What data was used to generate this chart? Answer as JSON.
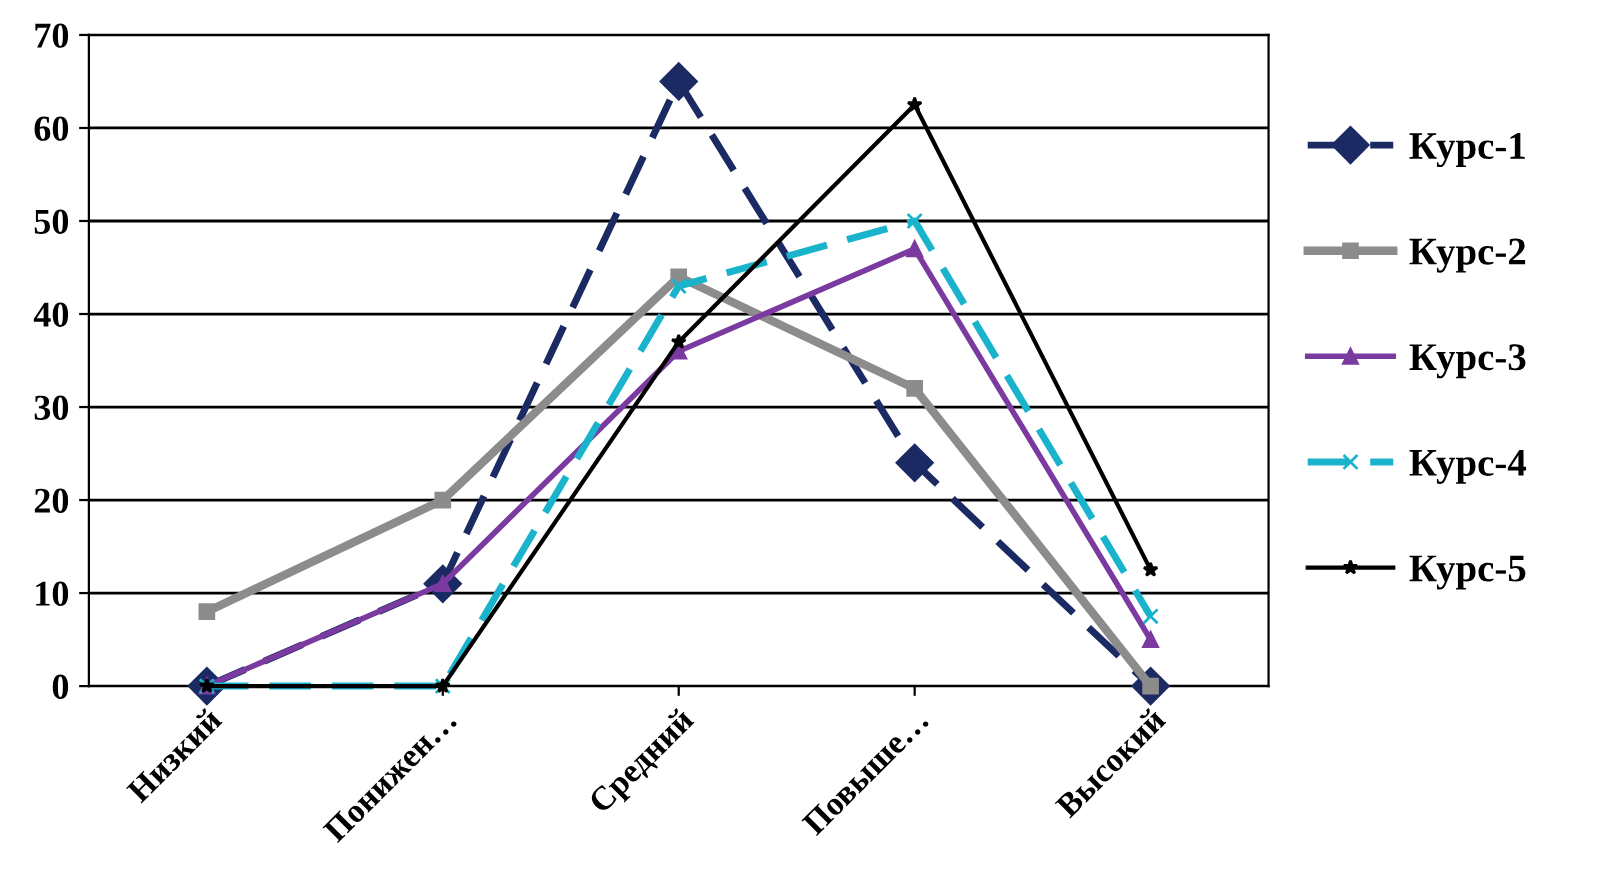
{
  "chart_data": {
    "type": "line",
    "categories": [
      "Низкий",
      "Понижен…",
      "Средний",
      "Повыше…",
      "Высокий"
    ],
    "series": [
      {
        "name": "Курс-1",
        "color": "#1b2a63",
        "values": [
          0,
          11,
          65,
          24,
          0
        ],
        "marker": "diamond",
        "line_style": "dashed"
      },
      {
        "name": "Курс-2",
        "color": "#8c8c8c",
        "values": [
          8,
          20,
          44,
          32,
          0
        ],
        "marker": "square",
        "line_style": "solid"
      },
      {
        "name": "Курс-3",
        "color": "#7a3aa0",
        "values": [
          0,
          11,
          36,
          47,
          5
        ],
        "marker": "triangle",
        "line_style": "solid"
      },
      {
        "name": "Курс-4",
        "color": "#1ab3cc",
        "values": [
          0,
          0,
          43,
          50,
          7.5
        ],
        "marker": "cross",
        "line_style": "dashed"
      },
      {
        "name": "Курс-5",
        "color": "#000000",
        "values": [
          0,
          0,
          37,
          62.5,
          12.5
        ],
        "marker": "star",
        "line_style": "solid"
      }
    ],
    "ylim": [
      0,
      70
    ],
    "yticks": [
      0,
      10,
      20,
      30,
      40,
      50,
      60,
      70
    ],
    "grid": "y",
    "legend": "right"
  }
}
